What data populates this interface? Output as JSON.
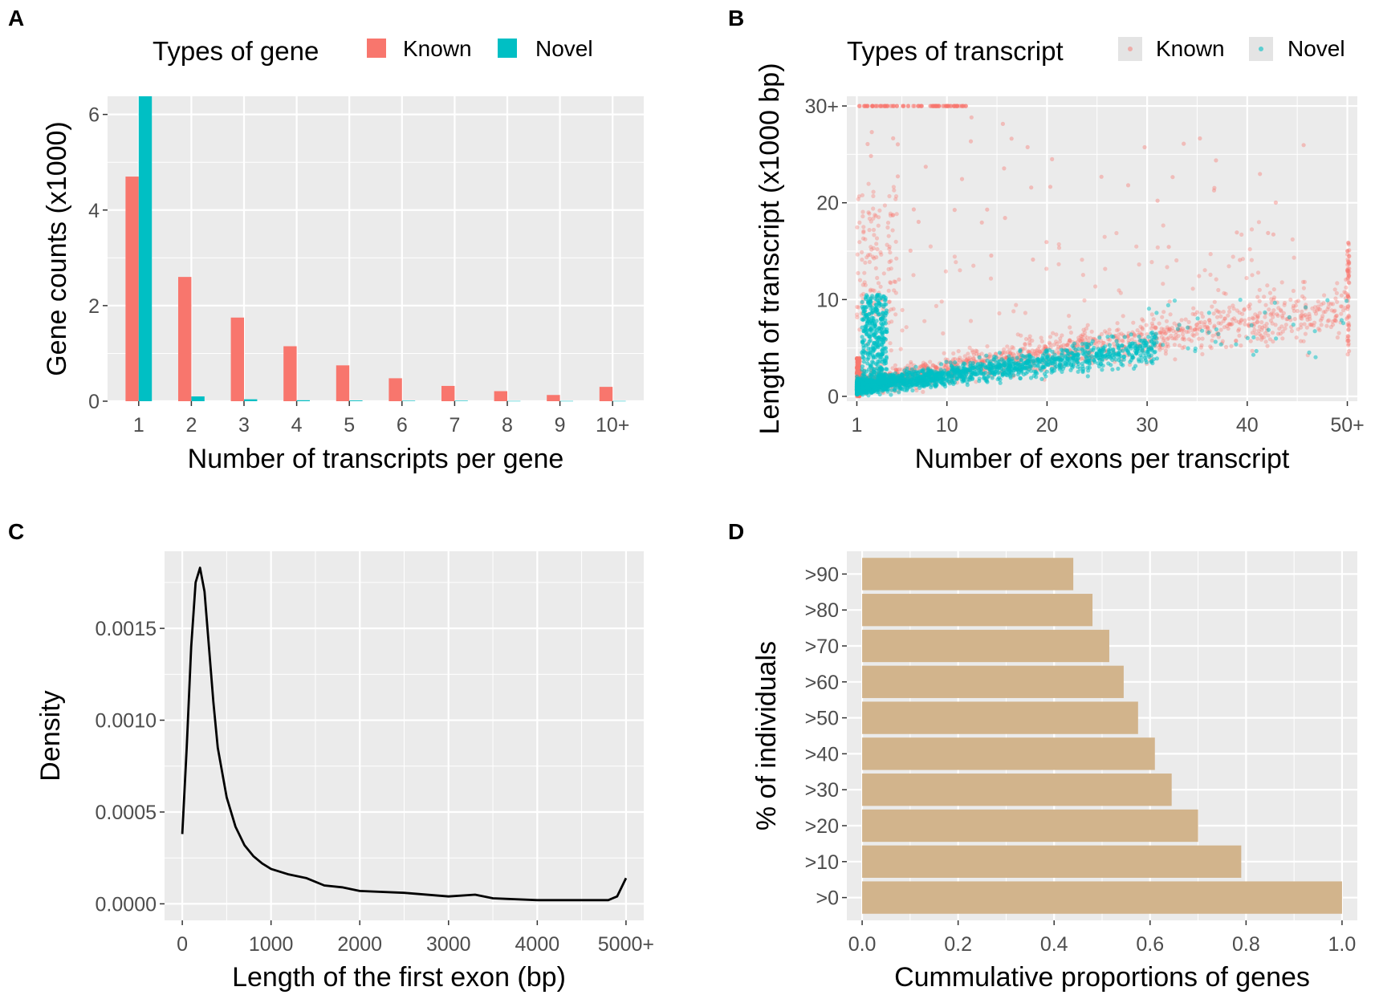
{
  "colors": {
    "known": "#F8766D",
    "novel": "#00BFC4",
    "panel_bg": "#EBEBEB",
    "grid": "#FFFFFF",
    "bar_d": "#D2B48C",
    "line_c": "#000000"
  },
  "chart_data": [
    {
      "panel": "A",
      "type": "bar",
      "legend_title": "Types of gene",
      "xlabel": "Number of transcripts per gene",
      "ylabel": "Gene counts (x1000)",
      "categories": [
        "1",
        "2",
        "3",
        "4",
        "5",
        "6",
        "7",
        "8",
        "9",
        "10+"
      ],
      "series": [
        {
          "name": "Known",
          "values": [
            4.7,
            2.6,
            1.75,
            1.15,
            0.75,
            0.48,
            0.32,
            0.21,
            0.13,
            0.3
          ]
        },
        {
          "name": "Novel",
          "values": [
            6.38,
            0.1,
            0.04,
            0.02,
            0.015,
            0.01,
            0.01,
            0.005,
            0.005,
            0.005
          ]
        }
      ],
      "yticks": [
        0,
        2,
        4,
        6
      ],
      "ylim": [
        0,
        6.38
      ]
    },
    {
      "panel": "B",
      "type": "scatter",
      "legend_title": "Types of transcript",
      "xlabel": "Number of exons per transcript",
      "ylabel": "Length of transcript (x1000 bp)",
      "series_names": [
        "Known",
        "Novel"
      ],
      "xticks": [
        1,
        10,
        20,
        30,
        40,
        "50+"
      ],
      "yticks": [
        0,
        10,
        20,
        "30+"
      ],
      "xlim": [
        0,
        51
      ],
      "ylim": [
        -0.5,
        31
      ]
    },
    {
      "panel": "C",
      "type": "line",
      "xlabel": "Length of the first exon (bp)",
      "ylabel": "Density",
      "x": [
        0,
        50,
        100,
        150,
        200,
        250,
        300,
        350,
        400,
        500,
        600,
        700,
        800,
        900,
        1000,
        1200,
        1400,
        1600,
        1800,
        2000,
        2500,
        3000,
        3300,
        3500,
        4000,
        4500,
        4800,
        4900,
        5000
      ],
      "y": [
        0.00038,
        0.00085,
        0.0014,
        0.00175,
        0.00183,
        0.0017,
        0.0014,
        0.0011,
        0.00085,
        0.00058,
        0.00042,
        0.00032,
        0.00026,
        0.00022,
        0.00019,
        0.00016,
        0.00014,
        0.0001,
        9e-05,
        7e-05,
        6e-05,
        4e-05,
        5e-05,
        3e-05,
        2e-05,
        2e-05,
        2e-05,
        4e-05,
        0.00014
      ],
      "xticks": [
        "0",
        "1000",
        "2000",
        "3000",
        "4000",
        "5000+"
      ],
      "yticks": [
        "0.0000",
        "0.0005",
        "0.0010",
        "0.0015"
      ],
      "xlim": [
        -200,
        5200
      ],
      "ylim": [
        -9e-05,
        0.00192
      ]
    },
    {
      "panel": "D",
      "type": "bar",
      "orientation": "horizontal",
      "xlabel": "Cummulative proportions of genes",
      "ylabel": "% of individuals",
      "categories": [
        ">0",
        ">10",
        ">20",
        ">30",
        ">40",
        ">50",
        ">60",
        ">70",
        ">80",
        ">90"
      ],
      "values": [
        1.0,
        0.79,
        0.7,
        0.645,
        0.61,
        0.575,
        0.545,
        0.515,
        0.48,
        0.44
      ],
      "xticks": [
        "0.0",
        "0.2",
        "0.4",
        "0.6",
        "0.8",
        "1.0"
      ],
      "xlim": [
        0,
        1.0
      ]
    }
  ]
}
